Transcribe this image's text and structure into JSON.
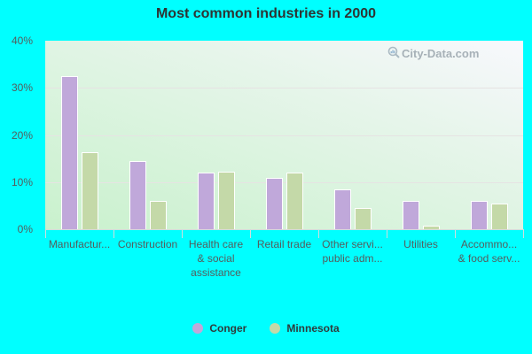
{
  "chart_data": {
    "type": "bar",
    "title": "Most common industries in 2000",
    "xlabel": "",
    "ylabel": "",
    "ylim": [
      0,
      40
    ],
    "yticks": [
      "0%",
      "10%",
      "20%",
      "30%",
      "40%"
    ],
    "grid": true,
    "legend_position": "bottom",
    "categories": [
      "Manufactur...",
      "Construction",
      "Health care & social assistance",
      "Retail trade",
      "Other servi... public adm...",
      "Utilities",
      "Accommo... & food serv..."
    ],
    "category_lines": [
      [
        "Manufactur..."
      ],
      [
        "Construction"
      ],
      [
        "Health care",
        "& social",
        "assistance"
      ],
      [
        "Retail trade"
      ],
      [
        "Other servi...",
        "public adm..."
      ],
      [
        "Utilities"
      ],
      [
        "Accommo...",
        "& food serv..."
      ]
    ],
    "series": [
      {
        "name": "Conger",
        "color": "#c0a8da",
        "values": [
          32.4,
          14.5,
          12.0,
          10.9,
          8.5,
          6.0,
          6.0
        ]
      },
      {
        "name": "Minnesota",
        "color": "#c4d9a8",
        "values": [
          16.3,
          6.0,
          12.2,
          12.0,
          4.6,
          0.8,
          5.5
        ]
      }
    ]
  },
  "title": "Most common industries in 2000",
  "legend": {
    "items": [
      {
        "label": "Conger",
        "color": "#c0a8da"
      },
      {
        "label": "Minnesota",
        "color": "#c4d9a8"
      }
    ]
  },
  "watermark": "City-Data.com"
}
